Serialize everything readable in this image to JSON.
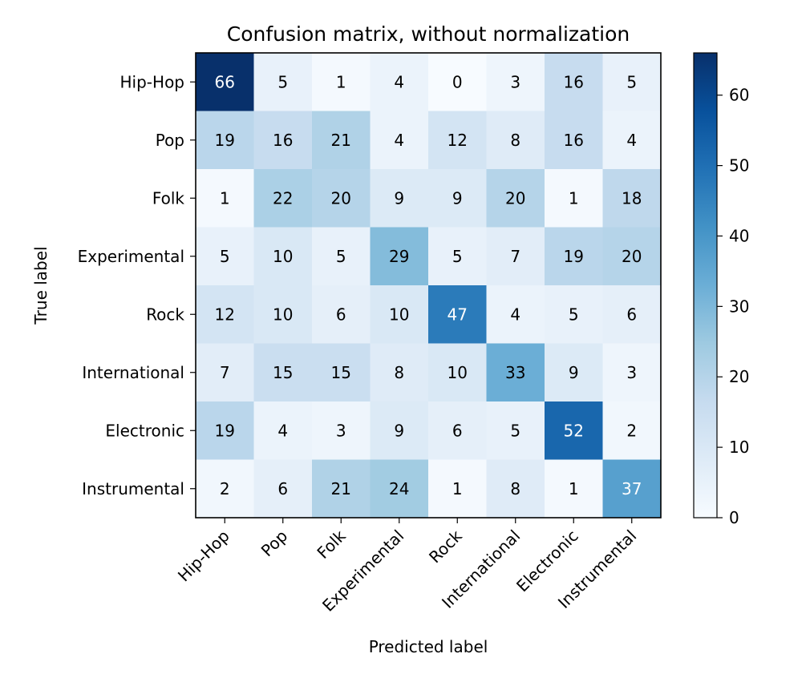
{
  "chart_data": {
    "type": "heatmap",
    "title": "Confusion matrix, without normalization",
    "xlabel": "Predicted label",
    "ylabel": "True label",
    "x_categories": [
      "Hip-Hop",
      "Pop",
      "Folk",
      "Experimental",
      "Rock",
      "International",
      "Electronic",
      "Instrumental"
    ],
    "y_categories": [
      "Hip-Hop",
      "Pop",
      "Folk",
      "Experimental",
      "Rock",
      "International",
      "Electronic",
      "Instrumental"
    ],
    "values": [
      [
        66,
        5,
        1,
        4,
        0,
        3,
        16,
        5
      ],
      [
        19,
        16,
        21,
        4,
        12,
        8,
        16,
        4
      ],
      [
        1,
        22,
        20,
        9,
        9,
        20,
        1,
        18
      ],
      [
        5,
        10,
        5,
        29,
        5,
        7,
        19,
        20
      ],
      [
        12,
        10,
        6,
        10,
        47,
        4,
        5,
        6
      ],
      [
        7,
        15,
        15,
        8,
        10,
        33,
        9,
        3
      ],
      [
        19,
        4,
        3,
        9,
        6,
        5,
        52,
        2
      ],
      [
        2,
        6,
        21,
        24,
        1,
        8,
        1,
        37
      ]
    ],
    "colormap": "Blues",
    "colorbar": {
      "range": [
        0,
        66
      ],
      "ticks": [
        0,
        10,
        20,
        30,
        40,
        50,
        60
      ]
    },
    "text_color_threshold": 33,
    "colors": {
      "text_dark": "#000000",
      "text_light": "#ffffff",
      "axis": "#000000"
    }
  }
}
